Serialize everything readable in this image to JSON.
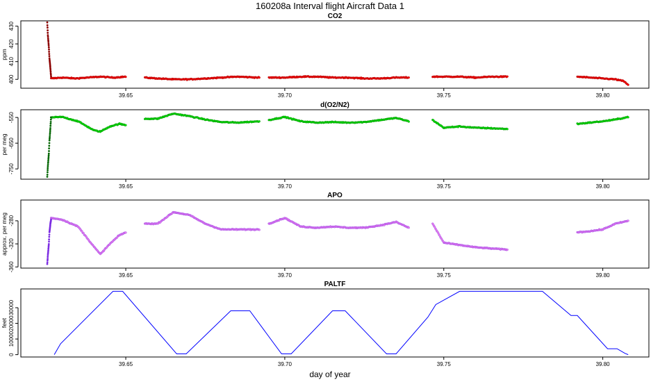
{
  "title": "160208a   Interval flight Aircraft Data 1",
  "xlabel": "day of year",
  "chart_data": [
    {
      "type": "scatter",
      "title": "CO2",
      "ylabel": "ppm",
      "xlim": [
        39.617,
        39.8145
      ],
      "ylim": [
        395,
        433
      ],
      "xticks": [
        39.65,
        39.7,
        39.75,
        39.8
      ],
      "xtick_labels": [
        "39.65",
        "39.70",
        "39.75",
        "39.80"
      ],
      "yticks": [
        400,
        410,
        420,
        430
      ],
      "ytick_labels": [
        "400",
        "410",
        "420",
        "430"
      ],
      "colors": {
        "main": "#ff0000",
        "dark": "#8b0000"
      },
      "series": [
        {
          "color": "main",
          "x": [
            39.6265,
            39.63,
            39.634,
            39.638,
            39.642,
            39.646,
            39.65
          ],
          "y": [
            400.5,
            401.0,
            400.5,
            401.0,
            401.5,
            401.0,
            401.5
          ]
        },
        {
          "color": "main",
          "x": [
            39.656,
            39.66,
            39.665,
            39.67,
            39.675,
            39.68,
            39.685,
            39.692
          ],
          "y": [
            401.0,
            400.5,
            400.0,
            400.0,
            400.5,
            401.0,
            401.5,
            401.0
          ]
        },
        {
          "color": "main",
          "x": [
            39.695,
            39.7,
            39.705,
            39.71,
            39.715,
            39.72,
            39.725,
            39.73,
            39.735,
            39.739
          ],
          "y": [
            401.0,
            401.0,
            401.5,
            401.5,
            401.0,
            401.0,
            400.5,
            400.5,
            401.0,
            401.0
          ]
        },
        {
          "color": "main",
          "x": [
            39.7465,
            39.75,
            39.755,
            39.76,
            39.765,
            39.77
          ],
          "y": [
            401.5,
            401.5,
            401.5,
            401.0,
            401.5,
            401.5
          ]
        },
        {
          "color": "main",
          "x": [
            39.792,
            39.796,
            39.8,
            39.804,
            39.8065,
            39.808
          ],
          "y": [
            401.5,
            401.0,
            400.5,
            400.0,
            399.0,
            397.0
          ]
        },
        {
          "color": "dark",
          "x": [
            39.6253,
            39.6255,
            39.6258,
            39.626,
            39.6263,
            39.6265
          ],
          "y": [
            432.0,
            425.0,
            418.0,
            412.0,
            406.0,
            401.5
          ]
        }
      ]
    },
    {
      "type": "scatter",
      "title": "d(O2/N2)",
      "ylabel": "per meg",
      "xlim": [
        39.617,
        39.8145
      ],
      "ylim": [
        -790,
        -520
      ],
      "xticks": [
        39.65,
        39.7,
        39.75,
        39.8
      ],
      "xtick_labels": [
        "39.65",
        "39.70",
        "39.75",
        "39.80"
      ],
      "yticks": [
        -750,
        -650,
        -550
      ],
      "ytick_labels": [
        "-750",
        "-650",
        "-550"
      ],
      "colors": {
        "main": "#00ee00",
        "dark": "#006400"
      },
      "series": [
        {
          "color": "main",
          "x": [
            39.6265,
            39.63,
            39.635,
            39.64,
            39.642,
            39.645,
            39.648,
            39.65
          ],
          "y": [
            -550,
            -548,
            -565,
            -600,
            -605,
            -585,
            -575,
            -580
          ]
        },
        {
          "color": "main",
          "x": [
            39.656,
            39.66,
            39.665,
            39.67,
            39.675,
            39.68,
            39.685,
            39.692
          ],
          "y": [
            -555,
            -555,
            -535,
            -545,
            -558,
            -568,
            -570,
            -565
          ]
        },
        {
          "color": "main",
          "x": [
            39.695,
            39.7,
            39.705,
            39.71,
            39.715,
            39.72,
            39.725,
            39.73,
            39.735,
            39.739
          ],
          "y": [
            -560,
            -548,
            -565,
            -570,
            -568,
            -570,
            -568,
            -560,
            -552,
            -565
          ]
        },
        {
          "color": "main",
          "x": [
            39.7465,
            39.75,
            39.755,
            39.76,
            39.765,
            39.77
          ],
          "y": [
            -560,
            -590,
            -585,
            -590,
            -592,
            -595
          ]
        },
        {
          "color": "main",
          "x": [
            39.792,
            39.796,
            39.8,
            39.804,
            39.8065,
            39.808
          ],
          "y": [
            -575,
            -570,
            -565,
            -558,
            -552,
            -548
          ]
        },
        {
          "color": "dark",
          "x": [
            39.6253,
            39.6255,
            39.6258,
            39.626,
            39.6263,
            39.6265
          ],
          "y": [
            -780,
            -740,
            -690,
            -640,
            -590,
            -550
          ]
        }
      ]
    },
    {
      "type": "scatter",
      "title": "APO",
      "ylabel": "approx. per meg",
      "xlim": [
        39.617,
        39.8145
      ],
      "ylim": [
        -362,
        -244
      ],
      "xticks": [
        39.65,
        39.7,
        39.75,
        39.8
      ],
      "xtick_labels": [
        "39.65",
        "39.70",
        "39.75",
        "39.80"
      ],
      "yticks": [
        -360,
        -320,
        -280
      ],
      "ytick_labels": [
        "-360",
        "-320",
        "-280"
      ],
      "colors": {
        "main": "#ee82ee",
        "dark": "#7b2be2"
      },
      "series": [
        {
          "color": "main",
          "x": [
            39.6265,
            39.63,
            39.635,
            39.64,
            39.642,
            39.645,
            39.648,
            39.65
          ],
          "y": [
            -275,
            -278,
            -290,
            -325,
            -338,
            -320,
            -305,
            -300
          ]
        },
        {
          "color": "main",
          "x": [
            39.656,
            39.66,
            39.665,
            39.67,
            39.675,
            39.68,
            39.685,
            39.692
          ],
          "y": [
            -285,
            -285,
            -265,
            -270,
            -285,
            -295,
            -295,
            -295
          ]
        },
        {
          "color": "main",
          "x": [
            39.695,
            39.7,
            39.705,
            39.71,
            39.715,
            39.72,
            39.725,
            39.73,
            39.735,
            39.739
          ],
          "y": [
            -285,
            -275,
            -290,
            -292,
            -290,
            -292,
            -292,
            -288,
            -282,
            -292
          ]
        },
        {
          "color": "main",
          "x": [
            39.7465,
            39.75,
            39.755,
            39.76,
            39.765,
            39.77
          ],
          "y": [
            -285,
            -318,
            -322,
            -326,
            -328,
            -330
          ]
        },
        {
          "color": "main",
          "x": [
            39.792,
            39.796,
            39.8,
            39.804,
            39.8065,
            39.808
          ],
          "y": [
            -300,
            -298,
            -295,
            -285,
            -282,
            -280
          ]
        },
        {
          "color": "dark",
          "x": [
            39.6253,
            39.6255,
            39.6258,
            39.626,
            39.6263,
            39.6265
          ],
          "y": [
            -355,
            -340,
            -320,
            -300,
            -285,
            -278
          ]
        }
      ]
    },
    {
      "type": "line",
      "title": "PALTF",
      "ylabel": "feet",
      "xlim": [
        39.617,
        39.8145
      ],
      "ylim": [
        -1500,
        42000
      ],
      "xticks": [
        39.65,
        39.7,
        39.75,
        39.8
      ],
      "xtick_labels": [
        "39.65",
        "39.70",
        "39.75",
        "39.80"
      ],
      "yticks": [
        0,
        10000,
        20000,
        30000
      ],
      "ytick_labels": [
        "0",
        "10000",
        "20000",
        "30000"
      ],
      "colors": {
        "main": "#0000ff"
      },
      "series": [
        {
          "color": "main",
          "x": [
            39.6275,
            39.6295,
            39.646,
            39.649,
            39.666,
            39.669,
            39.683,
            39.689,
            39.699,
            39.702,
            39.715,
            39.719,
            39.732,
            39.735,
            39.745,
            39.7475,
            39.755,
            39.781,
            39.79,
            39.792,
            39.8015,
            39.8045,
            39.807,
            39.808
          ],
          "y": [
            0,
            7000,
            40500,
            40500,
            500,
            500,
            28000,
            28000,
            500,
            500,
            28000,
            28000,
            500,
            500,
            24000,
            32000,
            40500,
            40500,
            25000,
            25000,
            3800,
            3800,
            800,
            0
          ]
        }
      ]
    }
  ]
}
